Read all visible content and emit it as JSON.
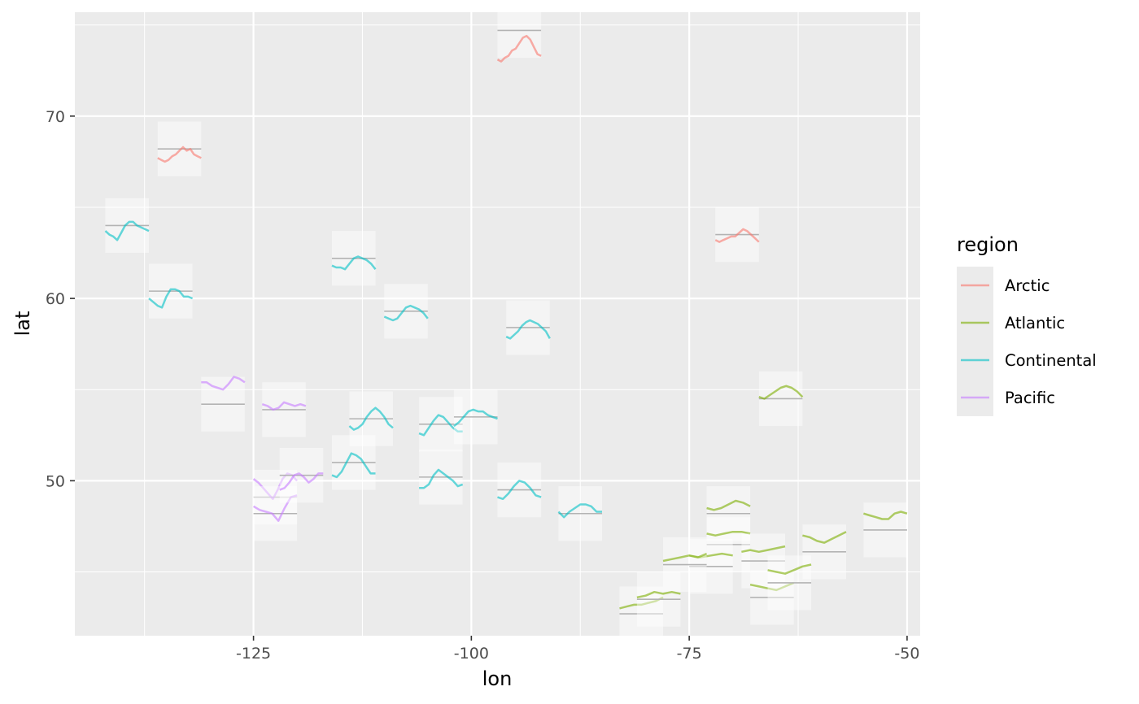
{
  "chart_data": {
    "type": "line",
    "xlabel": "lon",
    "ylabel": "lat",
    "xlim": [
      -145.5,
      -48.5
    ],
    "ylim": [
      41.5,
      75.7
    ],
    "x_ticks": [
      -125,
      -100,
      -75,
      -50
    ],
    "x_tick_labels": [
      "-125",
      "-100",
      "-75",
      "-50"
    ],
    "y_ticks": [
      50,
      60,
      70
    ],
    "y_tick_labels": [
      "50",
      "60",
      "70"
    ],
    "x_minor_ticks": [
      -137.5,
      -112.5,
      -87.5,
      -62.5
    ],
    "y_minor_ticks": [
      45,
      55,
      65,
      75
    ],
    "grid": true,
    "legend": {
      "title": "region",
      "position": "right",
      "entries": [
        {
          "label": "Arctic",
          "color": "#F8766D"
        },
        {
          "label": "Atlantic",
          "color": "#7CAE00"
        },
        {
          "label": "Continental",
          "color": "#00BFC4"
        },
        {
          "label": "Pacific",
          "color": "#C77CFF"
        }
      ]
    },
    "glyph_half_width_lon": 2.5,
    "glyph_half_height_lat": 1.5,
    "glyphs": [
      {
        "region": "Arctic",
        "lon": -94.5,
        "lat": 74.7,
        "ref": 74.7,
        "values": [
          73.1,
          73.0,
          73.2,
          73.3,
          73.6,
          73.7,
          74.0,
          74.3,
          74.4,
          74.2,
          73.8,
          73.4,
          73.3
        ]
      },
      {
        "region": "Arctic",
        "lon": -133.5,
        "lat": 68.2,
        "ref": 68.2,
        "values": [
          67.7,
          67.6,
          67.5,
          67.6,
          67.8,
          67.9,
          68.1,
          68.3,
          68.1,
          68.2,
          67.9,
          67.8,
          67.7
        ]
      },
      {
        "region": "Arctic",
        "lon": -69.5,
        "lat": 63.5,
        "ref": 63.5,
        "values": [
          63.2,
          63.1,
          63.2,
          63.3,
          63.4,
          63.4,
          63.6,
          63.8,
          63.7,
          63.5,
          63.3,
          63.1
        ]
      },
      {
        "region": "Continental",
        "lon": -139.5,
        "lat": 64.0,
        "ref": 64.0,
        "values": [
          63.7,
          63.5,
          63.4,
          63.2,
          63.6,
          64.0,
          64.2,
          64.2,
          64.0,
          63.9,
          63.8,
          63.7
        ]
      },
      {
        "region": "Continental",
        "lon": -134.5,
        "lat": 60.4,
        "ref": 60.4,
        "values": [
          60.0,
          59.8,
          59.6,
          59.5,
          60.1,
          60.5,
          60.5,
          60.4,
          60.1,
          60.1,
          60.0
        ]
      },
      {
        "region": "Continental",
        "lon": -113.5,
        "lat": 62.2,
        "ref": 62.2,
        "values": [
          61.8,
          61.7,
          61.7,
          61.6,
          61.9,
          62.2,
          62.3,
          62.2,
          62.1,
          61.9,
          61.6
        ]
      },
      {
        "region": "Continental",
        "lon": -107.5,
        "lat": 59.3,
        "ref": 59.3,
        "values": [
          59.0,
          58.9,
          58.8,
          58.9,
          59.2,
          59.5,
          59.6,
          59.5,
          59.4,
          59.2,
          58.9
        ]
      },
      {
        "region": "Continental",
        "lon": -93.5,
        "lat": 58.4,
        "ref": 58.4,
        "values": [
          57.9,
          57.8,
          58.0,
          58.2,
          58.5,
          58.7,
          58.8,
          58.7,
          58.6,
          58.4,
          58.2,
          57.8
        ]
      },
      {
        "region": "Continental",
        "lon": -111.5,
        "lat": 53.4,
        "ref": 53.4,
        "values": [
          53.0,
          52.8,
          52.9,
          53.1,
          53.5,
          53.8,
          54.0,
          53.8,
          53.5,
          53.1,
          52.9
        ]
      },
      {
        "region": "Continental",
        "lon": -103.5,
        "lat": 53.1,
        "ref": 53.1,
        "values": [
          52.6,
          52.5,
          52.9,
          53.3,
          53.6,
          53.5,
          53.2,
          52.9,
          52.7,
          52.7
        ]
      },
      {
        "region": "Continental",
        "lon": -99.5,
        "lat": 53.5,
        "ref": 53.5,
        "values": [
          53.0,
          53.2,
          53.5,
          53.8,
          53.9,
          53.8,
          53.8,
          53.6,
          53.5,
          53.4
        ]
      },
      {
        "region": "Continental",
        "lon": -113.5,
        "lat": 51.0,
        "ref": 51.0,
        "values": [
          50.3,
          50.2,
          50.5,
          51.0,
          51.5,
          51.4,
          51.2,
          50.8,
          50.4,
          50.4
        ]
      },
      {
        "region": "Continental",
        "lon": -103.5,
        "lat": 50.2,
        "ref": 50.2,
        "values": [
          49.6,
          49.6,
          49.8,
          50.3,
          50.6,
          50.4,
          50.2,
          50.0,
          49.7,
          49.8
        ]
      },
      {
        "region": "Continental",
        "lon": -94.5,
        "lat": 49.5,
        "ref": 49.5,
        "values": [
          49.1,
          49.0,
          49.3,
          49.7,
          50.0,
          49.9,
          49.6,
          49.2,
          49.1
        ]
      },
      {
        "region": "Continental",
        "lon": -87.5,
        "lat": 48.2,
        "ref": 48.2,
        "values": [
          48.3,
          48.0,
          48.3,
          48.5,
          48.7,
          48.7,
          48.6,
          48.3,
          48.3
        ]
      },
      {
        "region": "Pacific",
        "lon": -128.5,
        "lat": 54.2,
        "ref": 54.2,
        "values": [
          55.4,
          55.4,
          55.2,
          55.1,
          55.0,
          55.3,
          55.7,
          55.6,
          55.4
        ]
      },
      {
        "region": "Pacific",
        "lon": -121.5,
        "lat": 53.9,
        "ref": 53.9,
        "values": [
          54.2,
          54.1,
          53.9,
          54.0,
          54.3,
          54.2,
          54.1,
          54.2,
          54.1
        ]
      },
      {
        "region": "Pacific",
        "lon": -122.5,
        "lat": 49.1,
        "ref": 49.1,
        "values": [
          50.1,
          49.9,
          49.6,
          49.3,
          49.0,
          49.5,
          50.1,
          50.4,
          50.3,
          50.0
        ]
      },
      {
        "region": "Pacific",
        "lon": -122.5,
        "lat": 48.2,
        "ref": 48.2,
        "values": [
          48.6,
          48.4,
          48.3,
          48.2,
          47.8,
          48.5,
          49.1,
          49.2
        ]
      },
      {
        "region": "Pacific",
        "lon": -119.5,
        "lat": 50.3,
        "ref": 50.3,
        "values": [
          49.5,
          49.6,
          49.9,
          50.3,
          50.4,
          50.2,
          49.9,
          50.1,
          50.4,
          50.4
        ]
      },
      {
        "region": "Atlantic",
        "lon": -64.5,
        "lat": 54.5,
        "ref": 54.5,
        "values": [
          54.6,
          54.5,
          54.7,
          54.9,
          55.1,
          55.2,
          55.1,
          54.9,
          54.6
        ]
      },
      {
        "region": "Atlantic",
        "lon": -52.5,
        "lat": 47.3,
        "ref": 47.3,
        "values": [
          48.2,
          48.1,
          48.0,
          47.9,
          47.9,
          48.2,
          48.3,
          48.2
        ]
      },
      {
        "region": "Atlantic",
        "lon": -59.5,
        "lat": 46.1,
        "ref": 46.1,
        "values": [
          47.0,
          46.9,
          46.7,
          46.6,
          46.8,
          47.0,
          47.2
        ]
      },
      {
        "region": "Atlantic",
        "lon": -70.5,
        "lat": 48.2,
        "ref": 48.2,
        "values": [
          48.5,
          48.4,
          48.5,
          48.7,
          48.9,
          48.8,
          48.6
        ]
      },
      {
        "region": "Atlantic",
        "lon": -70.5,
        "lat": 46.5,
        "ref": 46.5,
        "values": [
          47.1,
          47.0,
          47.1,
          47.2,
          47.2,
          47.1
        ]
      },
      {
        "region": "Atlantic",
        "lon": -66.5,
        "lat": 45.6,
        "ref": 45.6,
        "values": [
          46.1,
          46.2,
          46.1,
          46.2,
          46.3,
          46.4
        ]
      },
      {
        "region": "Atlantic",
        "lon": -72.5,
        "lat": 45.3,
        "ref": 45.3,
        "values": [
          45.9,
          45.8,
          45.9,
          46.0,
          45.9
        ]
      },
      {
        "region": "Atlantic",
        "lon": -75.5,
        "lat": 45.4,
        "ref": 45.4,
        "values": [
          45.6,
          45.7,
          45.8,
          45.9,
          45.8,
          46.0
        ]
      },
      {
        "region": "Atlantic",
        "lon": -80.5,
        "lat": 42.7,
        "ref": 42.7,
        "values": [
          43.0,
          43.1,
          43.2,
          43.2,
          43.3,
          43.4,
          43.6
        ]
      },
      {
        "region": "Atlantic",
        "lon": -78.5,
        "lat": 43.5,
        "ref": 43.5,
        "values": [
          43.6,
          43.7,
          43.9,
          43.8,
          43.9,
          43.8
        ]
      },
      {
        "region": "Atlantic",
        "lon": -65.5,
        "lat": 43.6,
        "ref": 43.6,
        "values": [
          44.3,
          44.2,
          44.1,
          44.0,
          44.2,
          44.4
        ]
      },
      {
        "region": "Atlantic",
        "lon": -63.5,
        "lat": 44.4,
        "ref": 44.4,
        "values": [
          45.1,
          45.0,
          44.9,
          45.1,
          45.3,
          45.4
        ]
      }
    ]
  }
}
